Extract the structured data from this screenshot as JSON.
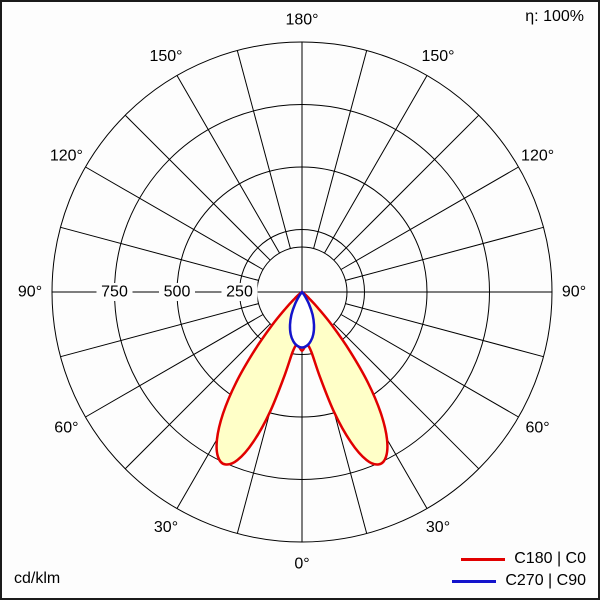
{
  "header": {
    "efficiency_label": "η: 100%"
  },
  "footer": {
    "unit_label": "cd/klm"
  },
  "chart_data": {
    "type": "polar",
    "subtype": "luminous-intensity-distribution",
    "unit": "cd/klm",
    "efficiency_percent": 100,
    "angle_ticks_deg": [
      0,
      30,
      60,
      90,
      120,
      150,
      180
    ],
    "angle_tick_labels": [
      "0°",
      "30°",
      "60°",
      "90°",
      "120°",
      "150°",
      "180°"
    ],
    "spoke_step_deg": 15,
    "radial_axis_max": 1000,
    "radial_rings": [
      250,
      500,
      750,
      1000
    ],
    "radial_ticks": [
      250,
      500,
      750
    ],
    "radial_tick_labels": [
      "250",
      "500",
      "750"
    ],
    "series": [
      {
        "name": "C180 | C0",
        "color": "#e10000",
        "fill": "#ffffc8",
        "symmetric": true,
        "gamma_deg": [
          0,
          3,
          6,
          9,
          12,
          15,
          18,
          21,
          24,
          27,
          30,
          33,
          36,
          39,
          42,
          45,
          48,
          51,
          54,
          60,
          75,
          90
        ],
        "values": [
          235,
          220,
          212,
          245,
          350,
          500,
          630,
          720,
          755,
          740,
          680,
          580,
          450,
          305,
          180,
          90,
          40,
          18,
          8,
          4,
          2,
          1
        ]
      },
      {
        "name": "C270 | C90",
        "color": "#1414cc",
        "fill": "#ffffff",
        "symmetric": true,
        "gamma_deg": [
          0,
          5,
          10,
          15,
          20,
          25,
          30,
          35,
          40,
          45,
          90
        ],
        "values": [
          222,
          216,
          200,
          175,
          140,
          100,
          55,
          20,
          5,
          2,
          0
        ]
      }
    ]
  }
}
